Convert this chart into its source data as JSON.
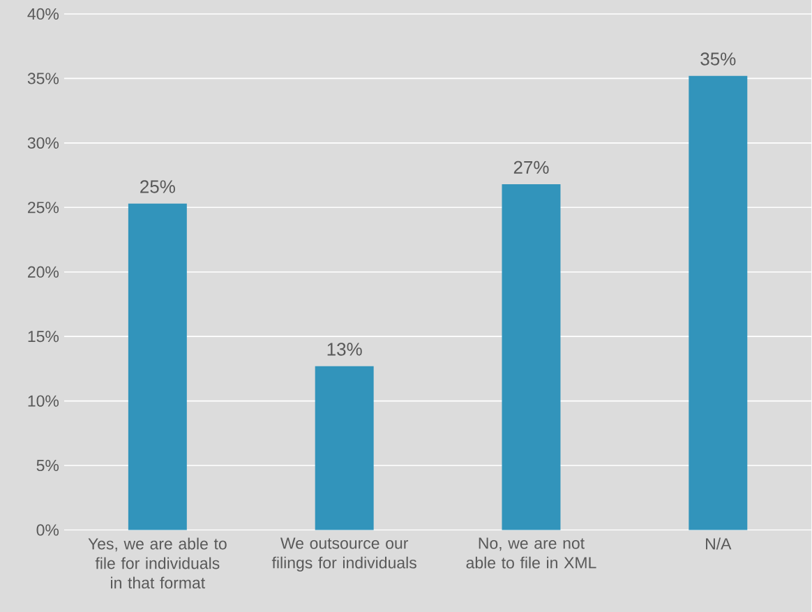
{
  "chart_data": {
    "type": "bar",
    "categories": [
      "Yes, we are able to file for individuals in that format",
      "We outsource our filings for individuals",
      "No, we are not able to file in XML",
      "N/A"
    ],
    "values": [
      25.3,
      12.7,
      26.8,
      35.2
    ],
    "value_labels": [
      "25%",
      "13%",
      "27%",
      "35%"
    ],
    "color": "#3294bb",
    "ylim": [
      0,
      40
    ],
    "yticks": [
      {
        "value": 0,
        "label": "0%"
      },
      {
        "value": 5,
        "label": "5%"
      },
      {
        "value": 10,
        "label": "10%"
      },
      {
        "value": 15,
        "label": "15%"
      },
      {
        "value": 20,
        "label": "20%"
      },
      {
        "value": 25,
        "label": "25%"
      },
      {
        "value": 30,
        "label": "30%"
      },
      {
        "value": 35,
        "label": "35%"
      },
      {
        "value": 40,
        "label": "40%"
      }
    ],
    "grid": "y"
  }
}
